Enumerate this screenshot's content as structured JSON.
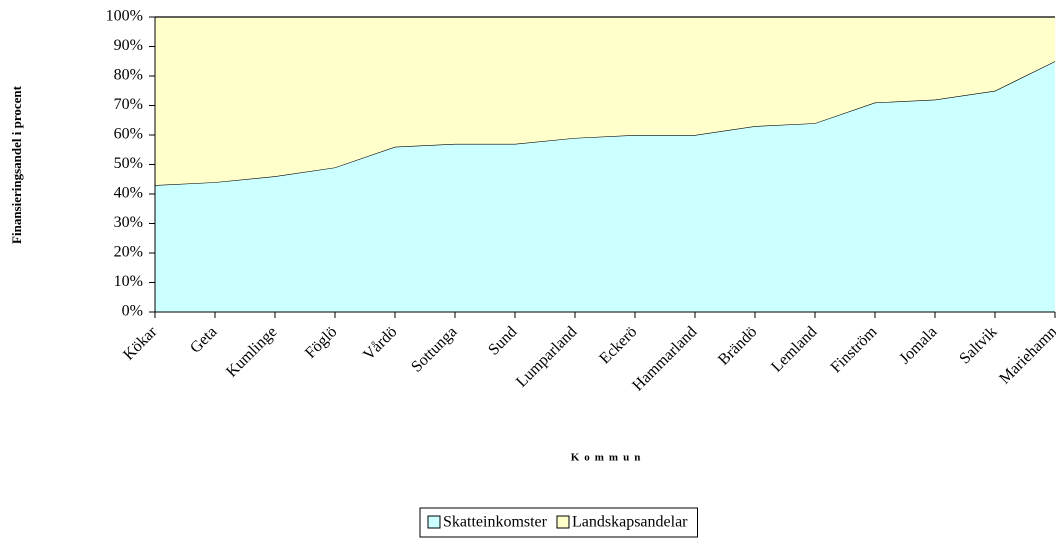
{
  "chart_data": {
    "type": "stacked_area_percent",
    "y_axis_label": "Finansieringsandel i procent",
    "x_axis_label": "Kommun",
    "categories": [
      "Kökar",
      "Geta",
      "Kumlinge",
      "Föglö",
      "Vårdö",
      "Sottunga",
      "Sund",
      "Lumparland",
      "Eckerö",
      "Hammarland",
      "Brändö",
      "Lemland",
      "Finström",
      "Jomala",
      "Saltvik",
      "Mariehamn"
    ],
    "series": [
      {
        "name": "Skatteinkomster",
        "color": "#ccffff",
        "values": [
          43,
          44,
          46,
          49,
          56,
          57,
          57,
          59,
          60,
          60,
          63,
          64,
          71,
          72,
          75,
          85
        ]
      },
      {
        "name": "Landskapsandelar",
        "color": "#ffffcc",
        "values": [
          57,
          56,
          54,
          51,
          44,
          43,
          43,
          41,
          40,
          40,
          37,
          36,
          29,
          28,
          25,
          15
        ]
      }
    ],
    "ylim": [
      0,
      100
    ],
    "yticks": [
      {
        "value": 0,
        "label": "0%"
      },
      {
        "value": 10,
        "label": "10%"
      },
      {
        "value": 20,
        "label": "20%"
      },
      {
        "value": 30,
        "label": "30%"
      },
      {
        "value": 40,
        "label": "40%"
      },
      {
        "value": 50,
        "label": "50%"
      },
      {
        "value": 60,
        "label": "60%"
      },
      {
        "value": 70,
        "label": "70%"
      },
      {
        "value": 80,
        "label": "80%"
      },
      {
        "value": 90,
        "label": "90%"
      },
      {
        "value": 100,
        "label": "100%"
      }
    ],
    "legend": "bottom"
  }
}
